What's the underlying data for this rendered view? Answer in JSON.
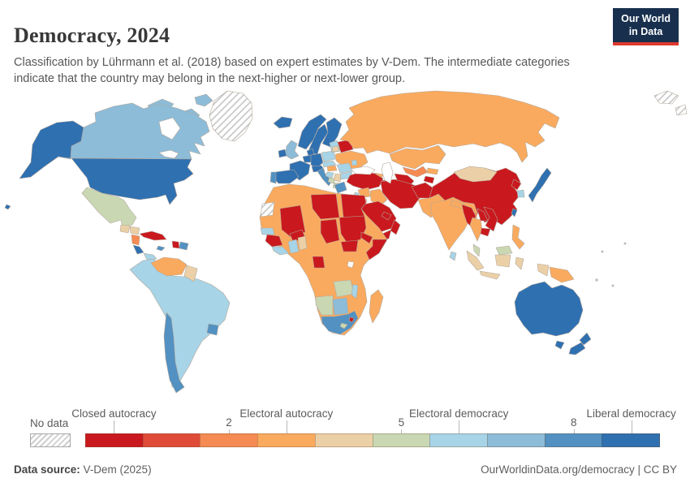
{
  "header": {
    "title": "Democracy, 2024",
    "subtitle": "Classification by Lührmann et al. (2018) based on expert estimates by V-Dem. The intermediate categories indicate that the country may belong in the next-higher or next-lower group.",
    "logo_line1": "Our World",
    "logo_line2": "in Data",
    "logo_bg": "#18304e",
    "logo_accent": "#dc3a2e"
  },
  "footer": {
    "source_label": "Data source:",
    "source_value": " V-Dem (2025)",
    "right_text": "OurWorldinData.org/democracy | CC BY"
  },
  "chart_data": {
    "type": "choropleth-map",
    "title": "Democracy, 2024",
    "legend_position": "bottom",
    "scale_range": [
      0,
      9
    ],
    "categories": [
      "Closed autocracy",
      "Electoral autocracy",
      "Electoral democracy",
      "Liberal democracy"
    ],
    "no_data_label": "No data",
    "bin_colors": [
      "#c9191e",
      "#df4b38",
      "#f58a52",
      "#faaa5e",
      "#ebd0a7",
      "#c9d8b3",
      "#a7d4e7",
      "#8cbcd8",
      "#5291c2",
      "#2f70b1"
    ],
    "ticks": [
      {
        "label": "Closed autocracy",
        "pos": 0.5,
        "row": "upper"
      },
      {
        "label": "2",
        "pos": 2.5,
        "row": "lower"
      },
      {
        "label": "Electoral autocracy",
        "pos": 3.5,
        "row": "upper"
      },
      {
        "label": "5",
        "pos": 5.5,
        "row": "lower"
      },
      {
        "label": "Electoral democracy",
        "pos": 6.5,
        "row": "upper"
      },
      {
        "label": "8",
        "pos": 8.5,
        "row": "lower"
      },
      {
        "label": "Liberal democracy",
        "pos": 9.5,
        "row": "upper"
      }
    ]
  },
  "map": {
    "regions": {
      "greenland": {
        "name": "Greenland",
        "value": null
      },
      "svalbard-1": {
        "name": "Svalbard",
        "value": null
      },
      "svalbard-2": {
        "name": "Arctic islands",
        "value": null
      },
      "western-sahara": {
        "name": "Western Sahara",
        "value": null
      },
      "canada-arctic-1": {
        "name": "Canada (Arctic islands)",
        "value": 7
      },
      "canada-arctic-2": {
        "name": "Canada (Arctic islands)",
        "value": 7
      },
      "canada-arctic-3": {
        "name": "Canada (Arctic islands)",
        "value": 7
      },
      "canada": {
        "name": "Canada",
        "value": 7
      },
      "alaska": {
        "name": "United States (Alaska)",
        "value": 9
      },
      "usa": {
        "name": "United States",
        "value": 9
      },
      "hawaii": {
        "name": "United States (Hawaii)",
        "value": 9
      },
      "mexico": {
        "name": "Mexico",
        "value": 5
      },
      "guatemala": {
        "name": "Guatemala",
        "value": 4
      },
      "honduras": {
        "name": "Honduras",
        "value": 4
      },
      "nicaragua": {
        "name": "Nicaragua",
        "value": 2
      },
      "costa-rica": {
        "name": "Costa Rica",
        "value": 9
      },
      "panama": {
        "name": "Panama",
        "value": 6
      },
      "cuba": {
        "name": "Cuba",
        "value": 0
      },
      "jamaica": {
        "name": "Jamaica",
        "value": 8
      },
      "haiti": {
        "name": "Haiti",
        "value": 0
      },
      "dominican-republic": {
        "name": "Dominican Republic",
        "value": 8
      },
      "venezuela": {
        "name": "Venezuela",
        "value": 3
      },
      "guyana": {
        "name": "Guyana & Suriname",
        "value": 4
      },
      "south-america-main": {
        "name": "Brazil, Argentina & Andean countries",
        "value": 6
      },
      "chile": {
        "name": "Chile",
        "value": 8
      },
      "uruguay": {
        "name": "Uruguay",
        "value": 8
      },
      "iceland": {
        "name": "Iceland",
        "value": 9
      },
      "norway": {
        "name": "Norway",
        "value": 9
      },
      "sweden": {
        "name": "Sweden",
        "value": 9
      },
      "finland": {
        "name": "Finland",
        "value": 9
      },
      "denmark": {
        "name": "Denmark",
        "value": 9
      },
      "uk": {
        "name": "United Kingdom",
        "value": 7
      },
      "ireland": {
        "name": "Ireland",
        "value": 9
      },
      "benelux": {
        "name": "Belgium & Netherlands",
        "value": 9
      },
      "germany": {
        "name": "Germany",
        "value": 9
      },
      "france": {
        "name": "France",
        "value": 9
      },
      "spain": {
        "name": "Spain",
        "value": 9
      },
      "portugal": {
        "name": "Portugal",
        "value": 8
      },
      "switzerland-austria": {
        "name": "Switzerland & Austria",
        "value": 9
      },
      "italy": {
        "name": "Italy",
        "value": 8
      },
      "poland": {
        "name": "Poland",
        "value": 6
      },
      "czech-slovakia": {
        "name": "Czechia & Slovakia",
        "value": 6
      },
      "baltics": {
        "name": "Estonia & Latvia",
        "value": 6
      },
      "lithuania": {
        "name": "Lithuania",
        "value": 4
      },
      "belarus": {
        "name": "Belarus",
        "value": 0
      },
      "ukraine": {
        "name": "Ukraine",
        "value": 3
      },
      "hungary": {
        "name": "Hungary",
        "value": 3
      },
      "romania": {
        "name": "Romania",
        "value": 6
      },
      "bulgaria": {
        "name": "Bulgaria",
        "value": 6
      },
      "croatia": {
        "name": "Croatia",
        "value": 6
      },
      "bosnia": {
        "name": "Bosnia and Herzegovina",
        "value": 5
      },
      "serbia": {
        "name": "Serbia",
        "value": 4
      },
      "albania-nmk": {
        "name": "Albania & North Macedonia",
        "value": 5
      },
      "greece": {
        "name": "Greece",
        "value": 8
      },
      "moldova": {
        "name": "Moldova",
        "value": 6
      },
      "russia": {
        "name": "Russia",
        "value": 3
      },
      "kazakhstan": {
        "name": "Kazakhstan",
        "value": 3
      },
      "uzbekistan": {
        "name": "Uzbekistan",
        "value": 2
      },
      "turkmenistan": {
        "name": "Turkmenistan",
        "value": 0
      },
      "kyrgyzstan": {
        "name": "Kyrgyzstan",
        "value": 3
      },
      "tajikistan": {
        "name": "Tajikistan",
        "value": 0
      },
      "georgia": {
        "name": "Georgia",
        "value": 3
      },
      "armenia": {
        "name": "Armenia",
        "value": 1
      },
      "azerbaijan": {
        "name": "Azerbaijan",
        "value": 0
      },
      "turkey": {
        "name": "Turkey",
        "value": 0
      },
      "syria": {
        "name": "Syria",
        "value": 3
      },
      "iraq": {
        "name": "Iraq",
        "value": 3
      },
      "iran": {
        "name": "Iran",
        "value": 0
      },
      "israel-lebanon": {
        "name": "Israel & Lebanon",
        "value": 6
      },
      "jordan": {
        "name": "Jordan",
        "value": 3
      },
      "saudi-arabia": {
        "name": "Saudi Arabia",
        "value": 0
      },
      "yemen": {
        "name": "Yemen",
        "value": 0
      },
      "oman": {
        "name": "Oman",
        "value": 0
      },
      "uae-qatar": {
        "name": "United Arab Emirates & Qatar",
        "value": 0
      },
      "afghanistan": {
        "name": "Afghanistan",
        "value": 0
      },
      "pakistan": {
        "name": "Pakistan",
        "value": 3
      },
      "india": {
        "name": "India",
        "value": 3
      },
      "nepal": {
        "name": "Nepal",
        "value": 3
      },
      "bangladesh": {
        "name": "Bangladesh",
        "value": 2
      },
      "sri-lanka": {
        "name": "Sri Lanka",
        "value": 6
      },
      "china": {
        "name": "China",
        "value": 0
      },
      "mongolia": {
        "name": "Mongolia",
        "value": 4
      },
      "north-korea": {
        "name": "North Korea",
        "value": 0
      },
      "south-korea": {
        "name": "South Korea",
        "value": 6
      },
      "japan": {
        "name": "Japan",
        "value": 9
      },
      "taiwan": {
        "name": "Taiwan",
        "value": 9
      },
      "myanmar": {
        "name": "Myanmar",
        "value": 0
      },
      "thailand": {
        "name": "Thailand",
        "value": 3
      },
      "laos": {
        "name": "Laos",
        "value": 0
      },
      "vietnam": {
        "name": "Vietnam",
        "value": 0
      },
      "cambodia": {
        "name": "Cambodia",
        "value": 0
      },
      "malaysia": {
        "name": "Malaysia",
        "value": 5
      },
      "malaysia-borneo": {
        "name": "Malaysia (Borneo)",
        "value": 5
      },
      "indonesia-sumatra": {
        "name": "Indonesia (Sumatra)",
        "value": 4
      },
      "indonesia-java": {
        "name": "Indonesia (Java)",
        "value": 4
      },
      "indonesia-borneo": {
        "name": "Indonesia (Kalimantan)",
        "value": 4
      },
      "indonesia-sulawesi": {
        "name": "Indonesia (Sulawesi)",
        "value": 4
      },
      "indonesia-papua": {
        "name": "Indonesia (Papua)",
        "value": 4
      },
      "philippines": {
        "name": "Philippines",
        "value": 3
      },
      "papua-new-guinea": {
        "name": "Papua New Guinea",
        "value": 3
      },
      "australia": {
        "name": "Australia",
        "value": 9
      },
      "tasmania": {
        "name": "Australia (Tasmania)",
        "value": 9
      },
      "new-zealand-north": {
        "name": "New Zealand (North Island)",
        "value": 9
      },
      "new-zealand-south": {
        "name": "New Zealand (South Island)",
        "value": 9
      },
      "africa-base": {
        "name": "Northern, Central & East Africa (multiple electoral autocracies)",
        "value": 3
      },
      "mali": {
        "name": "Mali",
        "value": 0
      },
      "burkina-faso": {
        "name": "Burkina Faso",
        "value": 0
      },
      "guinea": {
        "name": "Guinea",
        "value": 0
      },
      "senegal": {
        "name": "Senegal",
        "value": 6
      },
      "sierra-leone-liberia": {
        "name": "Sierra Leone & Liberia",
        "value": 6
      },
      "ghana": {
        "name": "Ghana",
        "value": 6
      },
      "togo-benin": {
        "name": "Togo & Benin",
        "value": 4
      },
      "libya": {
        "name": "Libya",
        "value": 0
      },
      "egypt": {
        "name": "Egypt",
        "value": 0
      },
      "chad": {
        "name": "Chad",
        "value": 0
      },
      "sudan": {
        "name": "Sudan",
        "value": 0
      },
      "south-sudan": {
        "name": "South Sudan",
        "value": 0
      },
      "eritrea-djibouti": {
        "name": "Eritrea & Djibouti",
        "value": 0
      },
      "somalia": {
        "name": "Somalia",
        "value": 0
      },
      "gabon": {
        "name": "Gabon & Equatorial Guinea",
        "value": 0
      },
      "zambia": {
        "name": "Zambia",
        "value": 5
      },
      "malawi": {
        "name": "Malawi",
        "value": 6
      },
      "namibia": {
        "name": "Namibia",
        "value": 5
      },
      "botswana": {
        "name": "Botswana",
        "value": 7
      },
      "south-africa": {
        "name": "South Africa",
        "value": 8
      },
      "lesotho": {
        "name": "Lesotho",
        "value": 5
      },
      "eswatini": {
        "name": "Eswatini",
        "value": 0
      },
      "madagascar": {
        "name": "Madagascar",
        "value": 3
      }
    }
  }
}
